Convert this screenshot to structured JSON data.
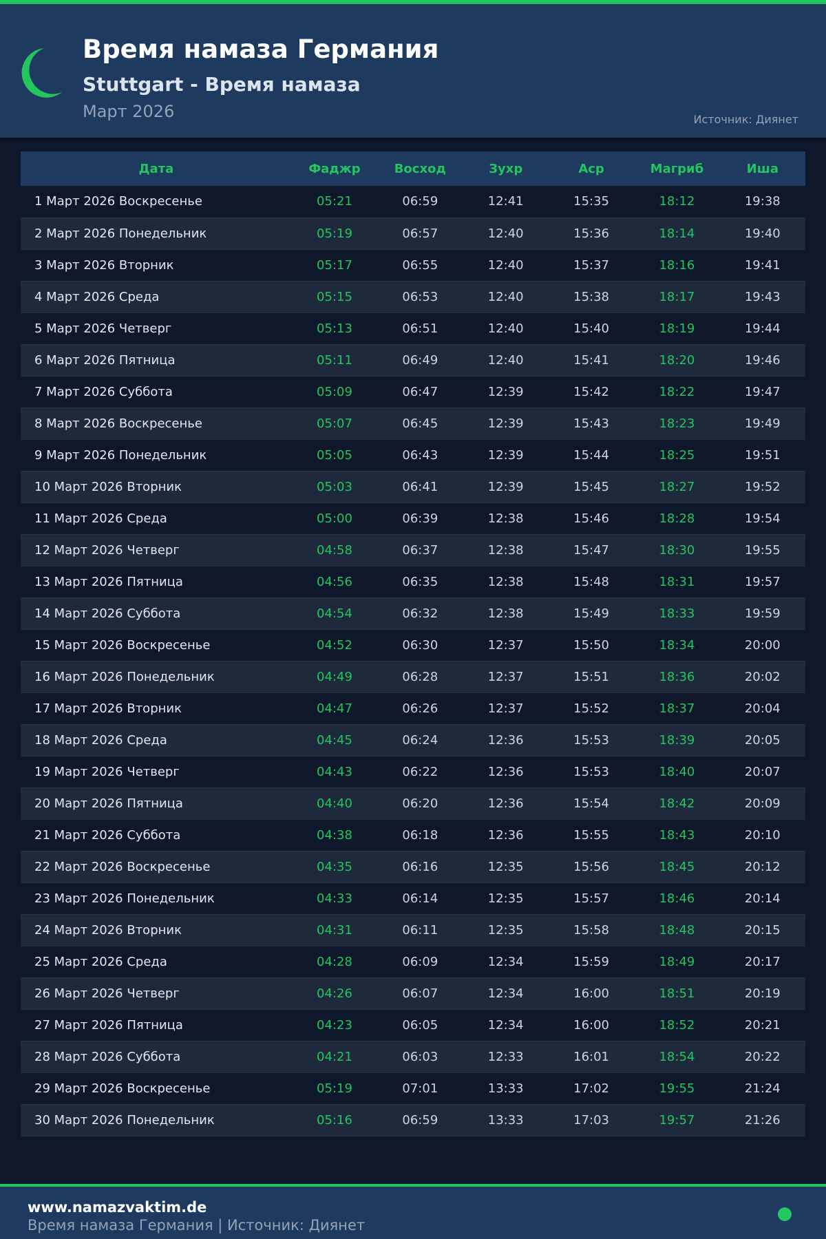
{
  "header": {
    "title": "Время намаза Германия",
    "subtitle": "Stuttgart - Время намаза",
    "month": "Март 2026",
    "source": "Источник: Диянет"
  },
  "colors": {
    "accent": "#22c55e",
    "header_bg": "#1e3a5f",
    "page_bg": "#0f172a"
  },
  "icons": {
    "logo": "crescent-moon-icon",
    "footer": "green-dot-icon"
  },
  "table": {
    "columns": [
      "Дата",
      "Фаджр",
      "Восход",
      "Зухр",
      "Аср",
      "Магриб",
      "Иша"
    ],
    "rows": [
      [
        "1 Март 2026 Воскресенье",
        "05:21",
        "06:59",
        "12:41",
        "15:35",
        "18:12",
        "19:38"
      ],
      [
        "2 Март 2026 Понедельник",
        "05:19",
        "06:57",
        "12:40",
        "15:36",
        "18:14",
        "19:40"
      ],
      [
        "3 Март 2026 Вторник",
        "05:17",
        "06:55",
        "12:40",
        "15:37",
        "18:16",
        "19:41"
      ],
      [
        "4 Март 2026 Среда",
        "05:15",
        "06:53",
        "12:40",
        "15:38",
        "18:17",
        "19:43"
      ],
      [
        "5 Март 2026 Четверг",
        "05:13",
        "06:51",
        "12:40",
        "15:40",
        "18:19",
        "19:44"
      ],
      [
        "6 Март 2026 Пятница",
        "05:11",
        "06:49",
        "12:40",
        "15:41",
        "18:20",
        "19:46"
      ],
      [
        "7 Март 2026 Суббота",
        "05:09",
        "06:47",
        "12:39",
        "15:42",
        "18:22",
        "19:47"
      ],
      [
        "8 Март 2026 Воскресенье",
        "05:07",
        "06:45",
        "12:39",
        "15:43",
        "18:23",
        "19:49"
      ],
      [
        "9 Март 2026 Понедельник",
        "05:05",
        "06:43",
        "12:39",
        "15:44",
        "18:25",
        "19:51"
      ],
      [
        "10 Март 2026 Вторник",
        "05:03",
        "06:41",
        "12:39",
        "15:45",
        "18:27",
        "19:52"
      ],
      [
        "11 Март 2026 Среда",
        "05:00",
        "06:39",
        "12:38",
        "15:46",
        "18:28",
        "19:54"
      ],
      [
        "12 Март 2026 Четверг",
        "04:58",
        "06:37",
        "12:38",
        "15:47",
        "18:30",
        "19:55"
      ],
      [
        "13 Март 2026 Пятница",
        "04:56",
        "06:35",
        "12:38",
        "15:48",
        "18:31",
        "19:57"
      ],
      [
        "14 Март 2026 Суббота",
        "04:54",
        "06:32",
        "12:38",
        "15:49",
        "18:33",
        "19:59"
      ],
      [
        "15 Март 2026 Воскресенье",
        "04:52",
        "06:30",
        "12:37",
        "15:50",
        "18:34",
        "20:00"
      ],
      [
        "16 Март 2026 Понедельник",
        "04:49",
        "06:28",
        "12:37",
        "15:51",
        "18:36",
        "20:02"
      ],
      [
        "17 Март 2026 Вторник",
        "04:47",
        "06:26",
        "12:37",
        "15:52",
        "18:37",
        "20:04"
      ],
      [
        "18 Март 2026 Среда",
        "04:45",
        "06:24",
        "12:36",
        "15:53",
        "18:39",
        "20:05"
      ],
      [
        "19 Март 2026 Четверг",
        "04:43",
        "06:22",
        "12:36",
        "15:53",
        "18:40",
        "20:07"
      ],
      [
        "20 Март 2026 Пятница",
        "04:40",
        "06:20",
        "12:36",
        "15:54",
        "18:42",
        "20:09"
      ],
      [
        "21 Март 2026 Суббота",
        "04:38",
        "06:18",
        "12:36",
        "15:55",
        "18:43",
        "20:10"
      ],
      [
        "22 Март 2026 Воскресенье",
        "04:35",
        "06:16",
        "12:35",
        "15:56",
        "18:45",
        "20:12"
      ],
      [
        "23 Март 2026 Понедельник",
        "04:33",
        "06:14",
        "12:35",
        "15:57",
        "18:46",
        "20:14"
      ],
      [
        "24 Март 2026 Вторник",
        "04:31",
        "06:11",
        "12:35",
        "15:58",
        "18:48",
        "20:15"
      ],
      [
        "25 Март 2026 Среда",
        "04:28",
        "06:09",
        "12:34",
        "15:59",
        "18:49",
        "20:17"
      ],
      [
        "26 Март 2026 Четверг",
        "04:26",
        "06:07",
        "12:34",
        "16:00",
        "18:51",
        "20:19"
      ],
      [
        "27 Март 2026 Пятница",
        "04:23",
        "06:05",
        "12:34",
        "16:00",
        "18:52",
        "20:21"
      ],
      [
        "28 Март 2026 Суббота",
        "04:21",
        "06:03",
        "12:33",
        "16:01",
        "18:54",
        "20:22"
      ],
      [
        "29 Март 2026 Воскресенье",
        "05:19",
        "07:01",
        "13:33",
        "17:02",
        "19:55",
        "21:24"
      ],
      [
        "30 Март 2026 Понедельник",
        "05:16",
        "06:59",
        "13:33",
        "17:03",
        "19:57",
        "21:26"
      ]
    ]
  },
  "footer": {
    "site": "www.namazvaktim.de",
    "text": "Время намаза Германия | Источник: Диянет"
  }
}
